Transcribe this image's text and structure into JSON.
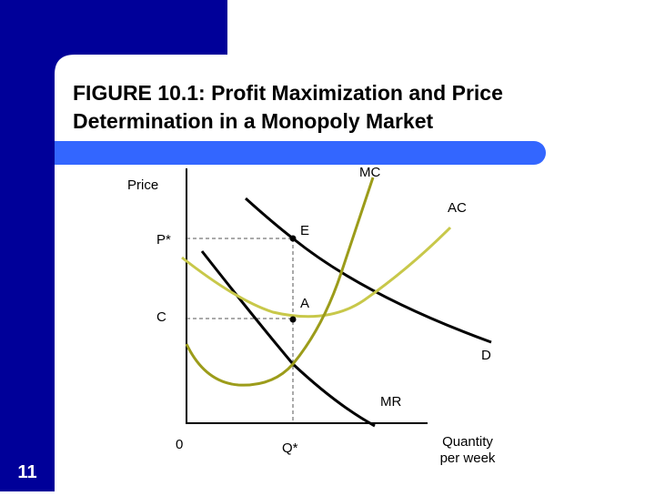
{
  "title": {
    "lines": [
      "FIGURE 10.1: Profit Maximization and Price",
      "Determination in a Monopoly Market"
    ]
  },
  "axes": {
    "y_label": "Price",
    "x_label_lines": [
      "Quantity",
      "per week"
    ],
    "origin": "0"
  },
  "curves": {
    "mc": "MC",
    "ac": "AC",
    "demand": "D",
    "mr": "MR"
  },
  "points": {
    "e": "E",
    "a": "A"
  },
  "levels": {
    "price": "P*",
    "cost": "C",
    "quantity": "Q*"
  },
  "slide_number": "11"
}
